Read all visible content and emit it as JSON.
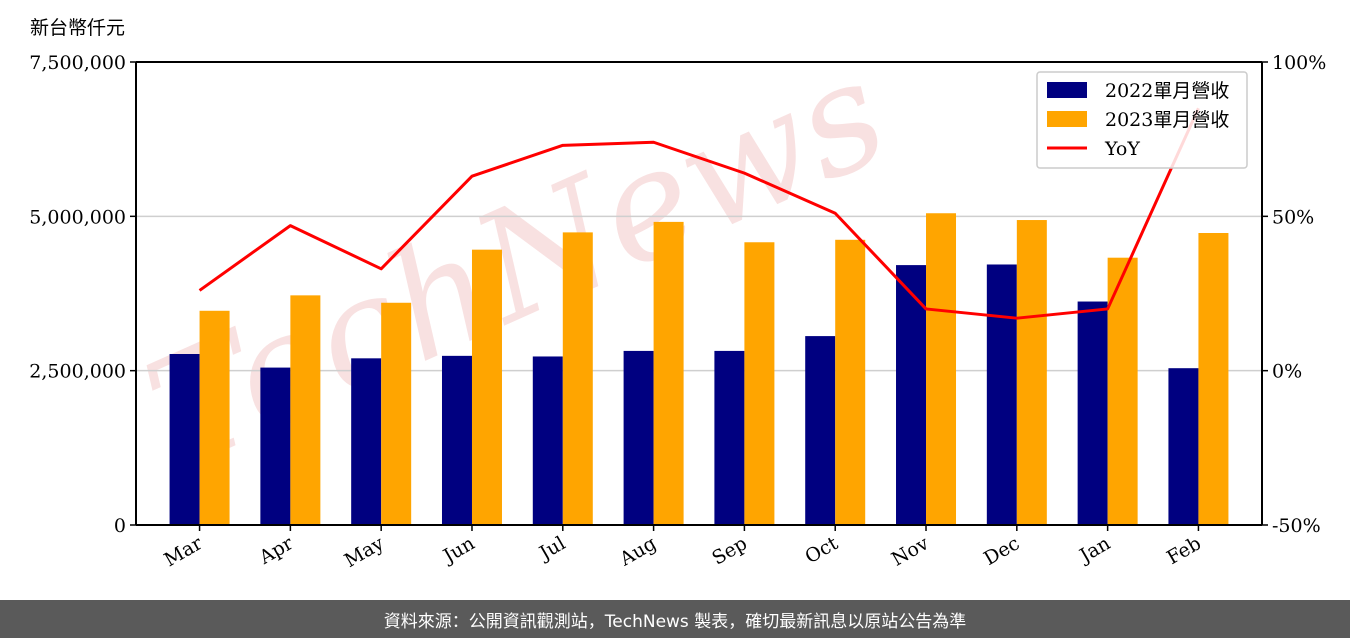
{
  "chart_data": {
    "type": "bar",
    "y_unit_label": "新台幣仟元",
    "categories": [
      "Mar",
      "Apr",
      "May",
      "Jun",
      "Jul",
      "Aug",
      "Sep",
      "Oct",
      "Nov",
      "Dec",
      "Jan",
      "Feb"
    ],
    "series": [
      {
        "name": "2022單月營收",
        "type": "bar",
        "color": "#000080",
        "values": [
          2770000,
          2550000,
          2700000,
          2740000,
          2730000,
          2820000,
          2820000,
          3060000,
          4210000,
          4220000,
          3620000,
          2540000
        ]
      },
      {
        "name": "2023單月營收",
        "type": "bar",
        "color": "#ffa500",
        "values": [
          3470000,
          3720000,
          3600000,
          4460000,
          4740000,
          4910000,
          4580000,
          4620000,
          5050000,
          4940000,
          4330000,
          4730000
        ]
      },
      {
        "name": "YoY",
        "type": "line",
        "axis": "right",
        "color": "#ff0000",
        "values": [
          26,
          47,
          33,
          63,
          73,
          74,
          64,
          51,
          20,
          17,
          20,
          85
        ]
      }
    ],
    "ylim": [
      0,
      7500000
    ],
    "yticks": [
      "0",
      "2,500,000",
      "5,000,000",
      "7,500,000"
    ],
    "y2lim": [
      -50,
      100
    ],
    "y2ticks": [
      "-50%",
      "0%",
      "50%",
      "100%"
    ],
    "grid": "horizontal",
    "legend_position": "top-right"
  },
  "watermark": "TechNews",
  "footer_text": "資料來源：公開資訊觀測站，TechNews 製表，確切最新訊息以原站公告為準",
  "colors": {
    "footer_bg": "#5a5a5a"
  }
}
